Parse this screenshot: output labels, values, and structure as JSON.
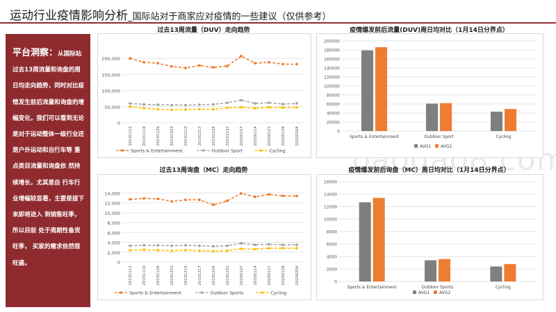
{
  "header": {
    "title_main": "运动行业疫情影响分析",
    "title_sub": "_国际站对于商家应对疫情的一些建议（仅供参考）"
  },
  "sidebar": {
    "lead": "平台洞察：",
    "text": "从国际站过去13周流量和询盘的周日均走向趋势，同时对比疫情发生前后流量和询盘的增幅变化，我们可以看到无论是对于运动整体一级行业还 是户外运动和自行车等 重点类目流量和询盘依 然持续增长，尤其是自 行车行业增幅较显著，主要是接下来即将进入 到销售旺季，所以目前 处于周期性备货旺季， 买家的需求依然很旺盛。"
  },
  "watermark": "baogao8.com",
  "colors": {
    "brand": "#8f2b2f",
    "sports": "#ed7d31",
    "outdoor": "#a5a5a5",
    "cycling": "#ffc000",
    "avg1": "#7f7f7f",
    "avg2": "#ed7d31"
  },
  "chart_data": [
    {
      "id": "duv_trend",
      "type": "line",
      "title": "过去13周流量（DUV）走向趋势",
      "categories": [
        "20191112",
        "20191119",
        "20191126",
        "20191203",
        "20191210",
        "20191217",
        "20191224",
        "20191231",
        "20200107",
        "20200114",
        "20200121",
        "20200128",
        "20200204"
      ],
      "series": [
        {
          "name": "Sports & Entertainment",
          "values": [
            200000,
            188000,
            185000,
            175000,
            170000,
            178000,
            172000,
            176000,
            207000,
            185000,
            188000,
            182000,
            182000
          ]
        },
        {
          "name": "Outdoor Sport",
          "values": [
            60000,
            57000,
            56000,
            55000,
            55000,
            56000,
            57000,
            62000,
            70000,
            60000,
            62000,
            58000,
            60000
          ]
        },
        {
          "name": "Cycling",
          "values": [
            50000,
            45000,
            42000,
            40000,
            41000,
            42000,
            42000,
            46000,
            48000,
            45000,
            48000,
            47000,
            48000
          ]
        }
      ],
      "yticks": [
        0,
        50000,
        100000,
        150000,
        200000
      ],
      "ytick_labels": [
        "0",
        "50,000",
        "100,000",
        "150,000",
        "200,000"
      ],
      "ylim": [
        0,
        250000
      ]
    },
    {
      "id": "mc_trend",
      "type": "line",
      "title": "过去13周询盘（MC）走向趋势",
      "categories": [
        "20191112",
        "20191119",
        "20191126",
        "20191203",
        "20191210",
        "20191217",
        "20191224",
        "20191231",
        "20200107",
        "20200114",
        "20200121",
        "20200128",
        "20200204"
      ],
      "series": [
        {
          "name": "Sports & Entertainment",
          "values": [
            12700,
            12900,
            12800,
            12300,
            12600,
            12600,
            11600,
            12400,
            13900,
            13200,
            13700,
            13400,
            13400
          ]
        },
        {
          "name": "Outdoor Sports",
          "values": [
            3300,
            3400,
            3400,
            3300,
            3400,
            3300,
            3200,
            3300,
            3800,
            3500,
            3600,
            3500,
            3500
          ]
        },
        {
          "name": "Cycling",
          "values": [
            2400,
            2500,
            2400,
            2300,
            2400,
            2300,
            2200,
            2300,
            2700,
            2600,
            2800,
            2800,
            2800
          ]
        }
      ],
      "yticks": [
        0,
        2000,
        4000,
        6000,
        8000,
        10000,
        12000,
        14000
      ],
      "ytick_labels": [
        "0",
        "2,000",
        "4,000",
        "6,000",
        "8,000",
        "10,000",
        "12,000",
        "14,000"
      ],
      "ylim": [
        0,
        16000
      ]
    },
    {
      "id": "duv_compare",
      "type": "bar",
      "title": "疫情爆发前后流量(DUV)周日均对比（1月14日分界点）",
      "categories": [
        "Sports & Entertainment",
        "Outdoor Sport",
        "Cycling"
      ],
      "series": [
        {
          "name": "AVG1",
          "values": [
            179000,
            61000,
            43000
          ]
        },
        {
          "name": "AVG2",
          "values": [
            186000,
            62000,
            49000
          ]
        }
      ],
      "yticks": [
        0,
        20000,
        40000,
        60000,
        80000,
        100000,
        120000,
        140000,
        160000,
        180000,
        200000
      ],
      "ytick_labels": [
        "0",
        "20000",
        "40000",
        "60000",
        "80000",
        "100000",
        "120000",
        "140000",
        "160000",
        "180000",
        "200000"
      ],
      "ylim": [
        0,
        200000
      ]
    },
    {
      "id": "mc_compare",
      "type": "bar",
      "title": "疫情爆发前后询盘（MC）周日均对比（1月14日分界点）",
      "categories": [
        "Sports & Entertainment",
        "Outdoor Sports",
        "Cycling"
      ],
      "series": [
        {
          "name": "AVG1",
          "values": [
            12700,
            3400,
            2400
          ]
        },
        {
          "name": "AVG2",
          "values": [
            13400,
            3600,
            2800
          ]
        }
      ],
      "yticks": [
        0,
        2000,
        4000,
        6000,
        8000,
        10000,
        12000,
        14000,
        16000
      ],
      "ytick_labels": [
        "0",
        "2000",
        "4000",
        "6000",
        "8000",
        "10000",
        "12000",
        "14000",
        "16000"
      ],
      "ylim": [
        0,
        16000
      ]
    }
  ]
}
